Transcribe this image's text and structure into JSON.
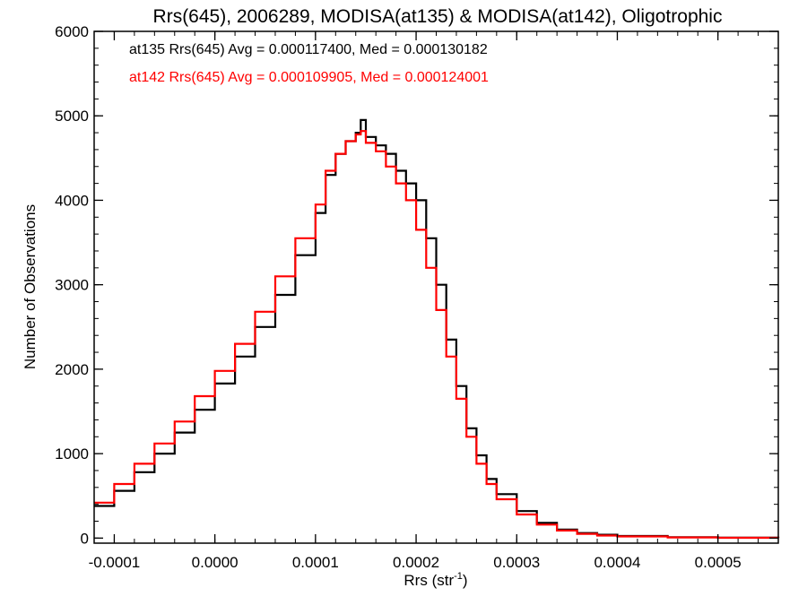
{
  "chart_data": {
    "type": "line",
    "style": "step-histogram",
    "title": "Rrs(645), 2006289, MODISA(at135) & MODISA(at142), Oligotrophic",
    "xlabel_main": "Rrs (str",
    "xlabel_sup": "-1",
    "xlabel_close": ")",
    "ylabel": "Number of Observations",
    "xlim": [
      -0.00012,
      0.00056
    ],
    "ylim": [
      -60,
      6000
    ],
    "x_ticks": [
      -0.0001,
      0.0,
      0.0001,
      0.0002,
      0.0003,
      0.0004,
      0.0005
    ],
    "x_tick_labels": [
      "-0.0001",
      "0.0000",
      "0.0001",
      "0.0002",
      "0.0003",
      "0.0004",
      "0.0005"
    ],
    "y_ticks": [
      0,
      1000,
      2000,
      3000,
      4000,
      5000,
      6000
    ],
    "y_tick_labels": [
      "0",
      "1000",
      "2000",
      "3000",
      "4000",
      "5000",
      "6000"
    ],
    "grid": false,
    "legend_position": "top-left",
    "series": [
      {
        "name": "at135",
        "legend": "at135 Rrs(645) Avg = 0.000117400, Med = 0.000130182",
        "color": "#000000",
        "x": [
          -0.00012,
          -0.0001,
          -8e-05,
          -6e-05,
          -4e-05,
          -2e-05,
          0.0,
          2e-05,
          4e-05,
          6e-05,
          8e-05,
          0.0001,
          0.00011,
          0.00012,
          0.00013,
          0.00014,
          0.000145,
          0.00015,
          0.00016,
          0.00017,
          0.00018,
          0.00019,
          0.0002,
          0.00021,
          0.00022,
          0.00023,
          0.00024,
          0.00025,
          0.00026,
          0.00027,
          0.00028,
          0.0003,
          0.00032,
          0.00034,
          0.00036,
          0.00038,
          0.0004,
          0.00045,
          0.0005,
          0.00056
        ],
        "y": [
          380,
          560,
          780,
          1000,
          1250,
          1520,
          1830,
          2150,
          2500,
          2880,
          3350,
          3850,
          4300,
          4550,
          4700,
          4800,
          4950,
          4750,
          4650,
          4550,
          4350,
          4200,
          4000,
          3550,
          3000,
          2350,
          1800,
          1300,
          980,
          700,
          520,
          320,
          180,
          100,
          60,
          40,
          25,
          10,
          5,
          2
        ]
      },
      {
        "name": "at142",
        "legend": "at142 Rrs(645) Avg = 0.000109905, Med = 0.000124001",
        "color": "#ff0000",
        "x": [
          -0.00012,
          -0.0001,
          -8e-05,
          -6e-05,
          -4e-05,
          -2e-05,
          0.0,
          2e-05,
          4e-05,
          6e-05,
          8e-05,
          0.0001,
          0.00011,
          0.00012,
          0.00013,
          0.00014,
          0.000145,
          0.00015,
          0.00016,
          0.00017,
          0.00018,
          0.00019,
          0.0002,
          0.00021,
          0.00022,
          0.00023,
          0.00024,
          0.00025,
          0.00026,
          0.00027,
          0.00028,
          0.0003,
          0.00032,
          0.00034,
          0.00036,
          0.00038,
          0.0004,
          0.00045,
          0.0005,
          0.00056
        ],
        "y": [
          420,
          640,
          880,
          1120,
          1380,
          1680,
          1980,
          2300,
          2680,
          3100,
          3550,
          3950,
          4350,
          4550,
          4700,
          4780,
          4820,
          4680,
          4580,
          4400,
          4200,
          4000,
          3650,
          3200,
          2700,
          2150,
          1650,
          1200,
          880,
          640,
          460,
          280,
          160,
          90,
          50,
          30,
          20,
          8,
          4,
          2
        ]
      }
    ]
  }
}
